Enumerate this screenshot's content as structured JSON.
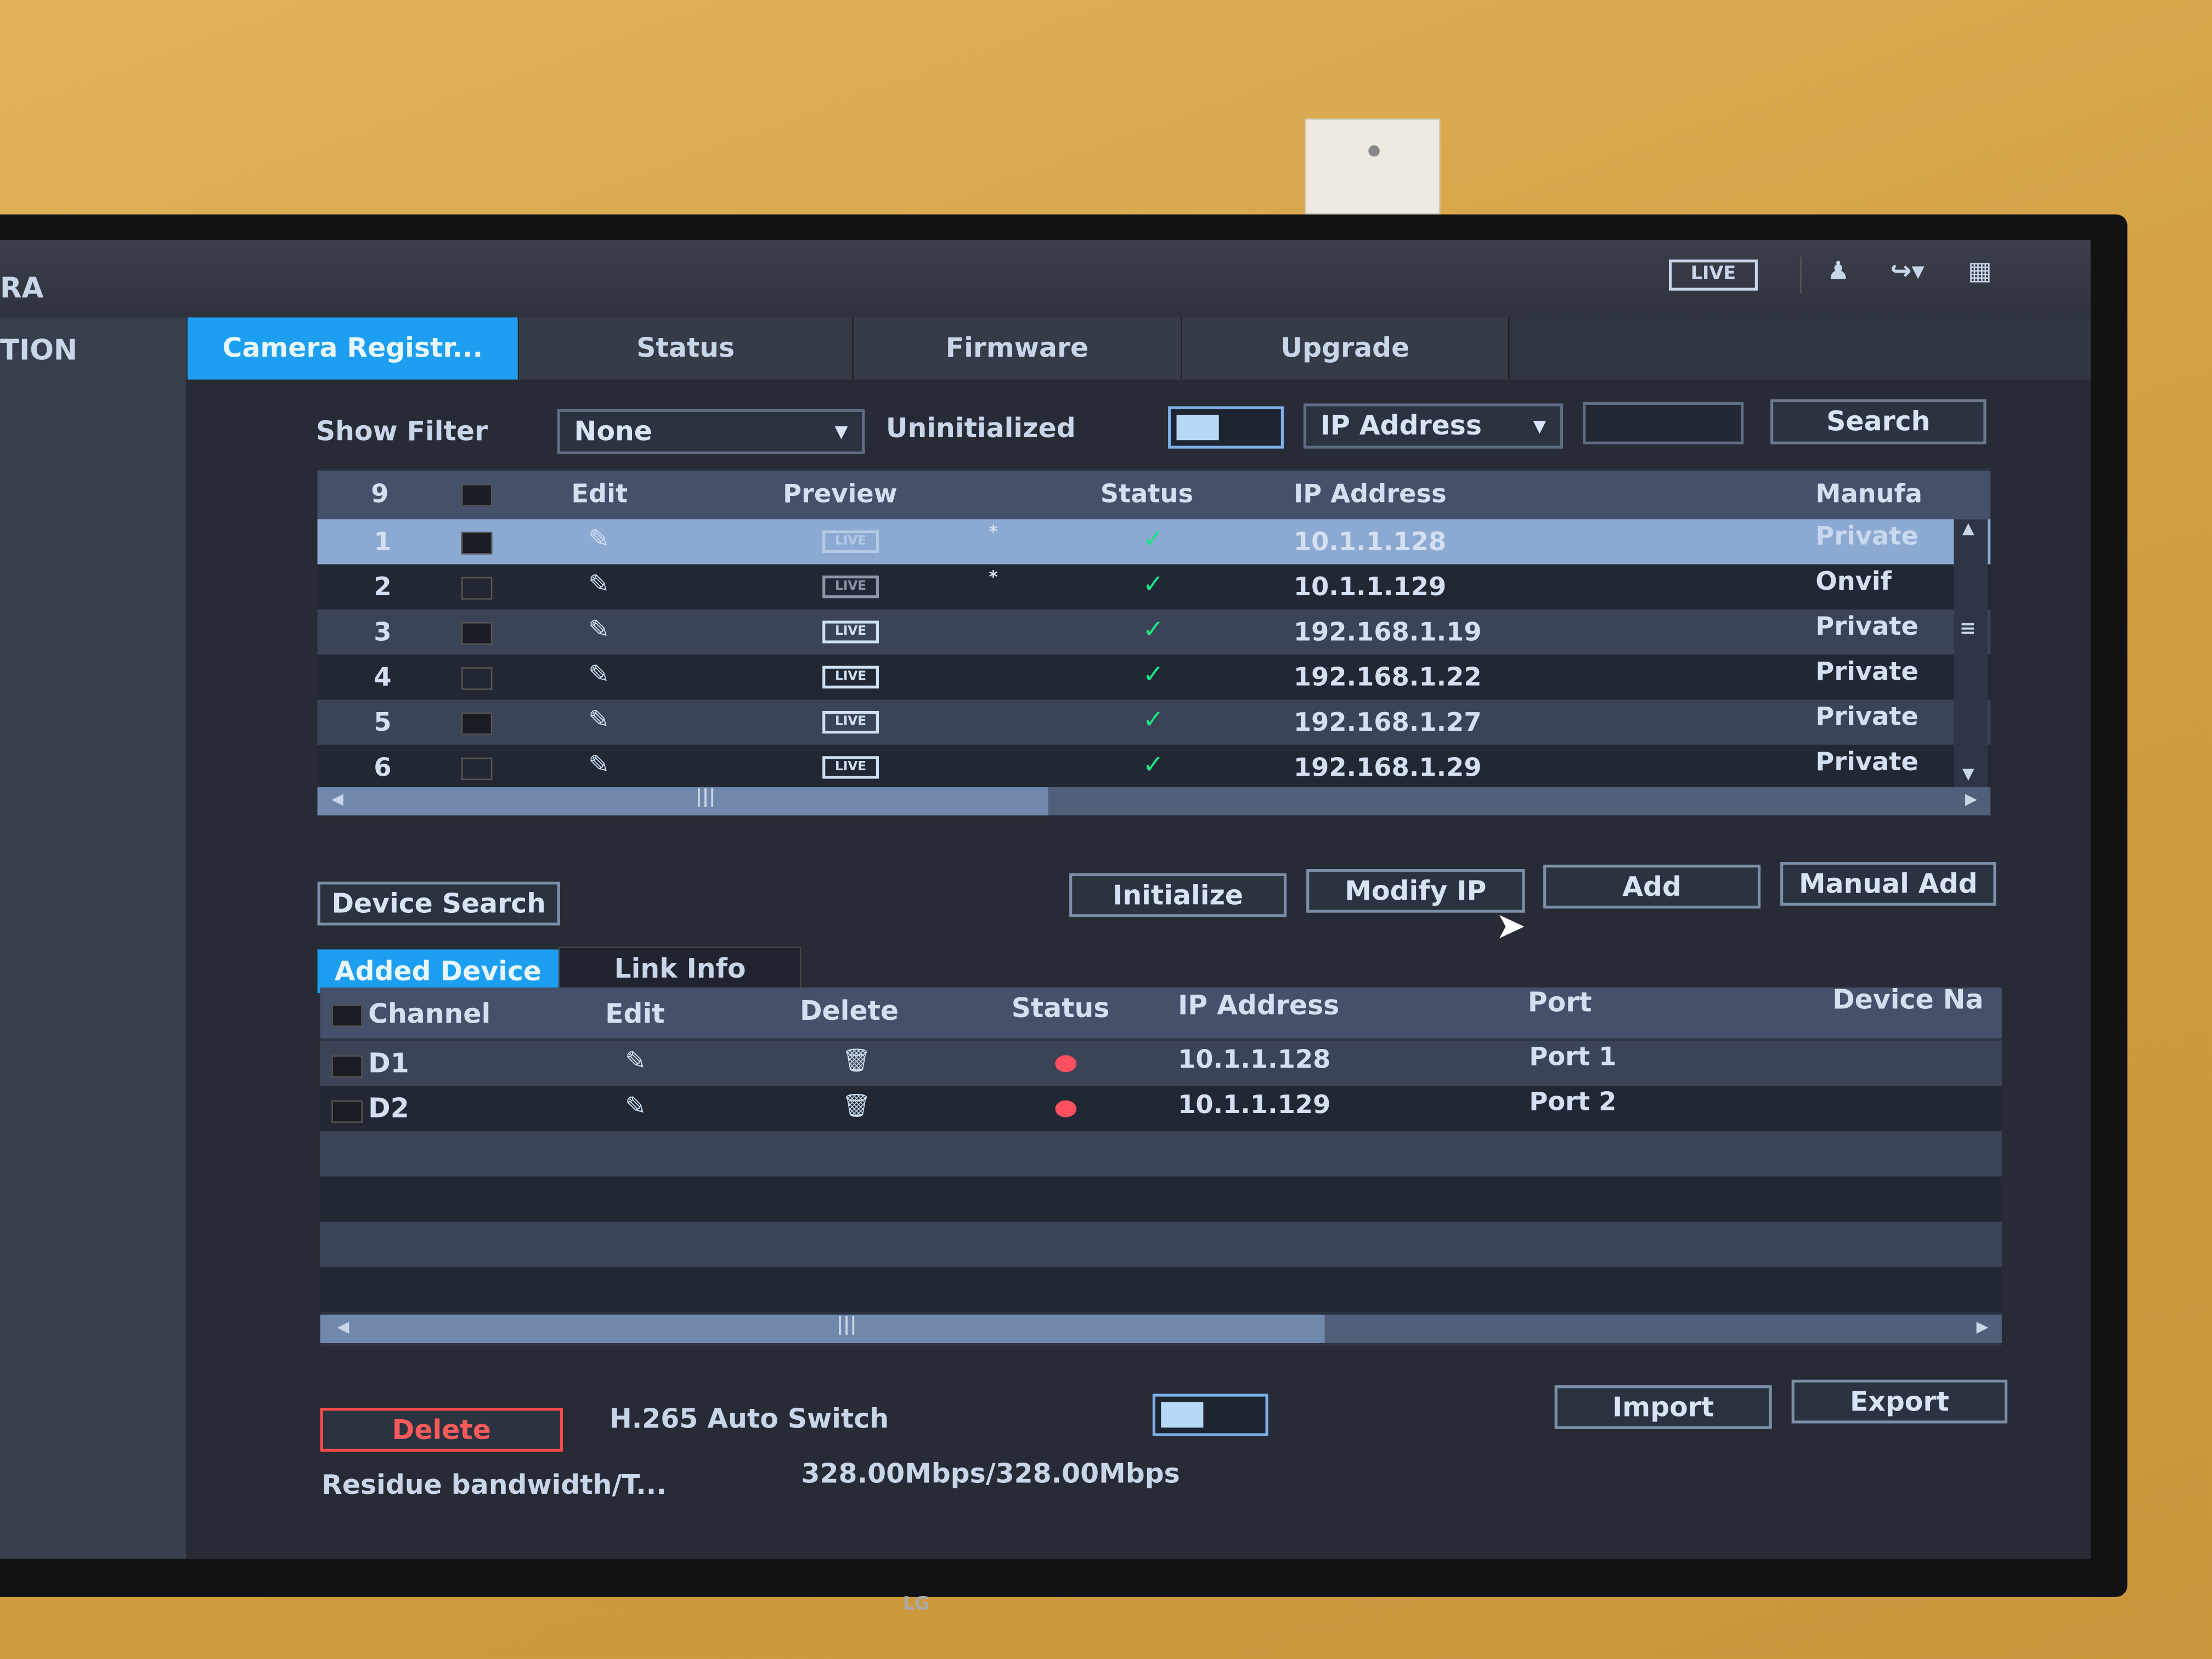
{
  "topbar": {
    "title_fragment": "RA",
    "live_label": "LIVE",
    "icons": [
      "user-icon",
      "logout-icon",
      "qr-code-icon"
    ]
  },
  "sidebar": {
    "item_fragment": "TION"
  },
  "tabs": [
    {
      "label": "Camera Registr...",
      "active": true
    },
    {
      "label": "Status"
    },
    {
      "label": "Firmware"
    },
    {
      "label": "Upgrade"
    }
  ],
  "filter": {
    "show_filter_label": "Show Filter",
    "show_filter_value": "None",
    "uninitialized_label": "Uninitialized",
    "uninitialized_on": false,
    "search_type": "IP Address",
    "search_value": "",
    "search_label": "Search"
  },
  "search_table": {
    "count": "9",
    "headers": {
      "edit": "Edit",
      "preview": "Preview",
      "status": "Status",
      "ip": "IP Address",
      "manufacturer": "Manufa"
    },
    "rows": [
      {
        "no": "1",
        "ip": "10.1.1.128",
        "manufacturer": "Private",
        "added": "*",
        "selected": true
      },
      {
        "no": "2",
        "ip": "10.1.1.129",
        "manufacturer": "Onvif",
        "added": "*"
      },
      {
        "no": "3",
        "ip": "192.168.1.19",
        "manufacturer": "Private",
        "added": ""
      },
      {
        "no": "4",
        "ip": "192.168.1.22",
        "manufacturer": "Private",
        "added": ""
      },
      {
        "no": "5",
        "ip": "192.168.1.27",
        "manufacturer": "Private",
        "added": ""
      },
      {
        "no": "6",
        "ip": "192.168.1.29",
        "manufacturer": "Private",
        "added": ""
      }
    ],
    "live_label": "LIVE",
    "status_ok_color": "#1fe38a"
  },
  "actions": {
    "device_search": "Device Search",
    "initialize": "Initialize",
    "modify_ip": "Modify IP",
    "add": "Add",
    "manual_add": "Manual Add"
  },
  "sub_tabs": [
    {
      "label": "Added Device",
      "active": true
    },
    {
      "label": "Link Info"
    }
  ],
  "added_table": {
    "headers": {
      "channel": "Channel",
      "edit": "Edit",
      "delete": "Delete",
      "status": "Status",
      "ip": "IP Address",
      "port": "Port",
      "device_name": "Device Na"
    },
    "rows": [
      {
        "channel": "D1",
        "ip": "10.1.1.128",
        "port": "Port 1"
      },
      {
        "channel": "D2",
        "ip": "10.1.1.129",
        "port": "Port 2"
      }
    ],
    "status_color": "#ff5060"
  },
  "footer": {
    "delete": "Delete",
    "h265_label": "H.265 Auto Switch",
    "h265_on": false,
    "import": "Import",
    "export": "Export",
    "bandwidth_label": "Residue bandwidth/T...",
    "bandwidth_value": "328.00Mbps/328.00Mbps"
  },
  "tv_brand": "LG",
  "colors": {
    "accent": "#1c9ff0",
    "delete": "#ff4a4a"
  }
}
